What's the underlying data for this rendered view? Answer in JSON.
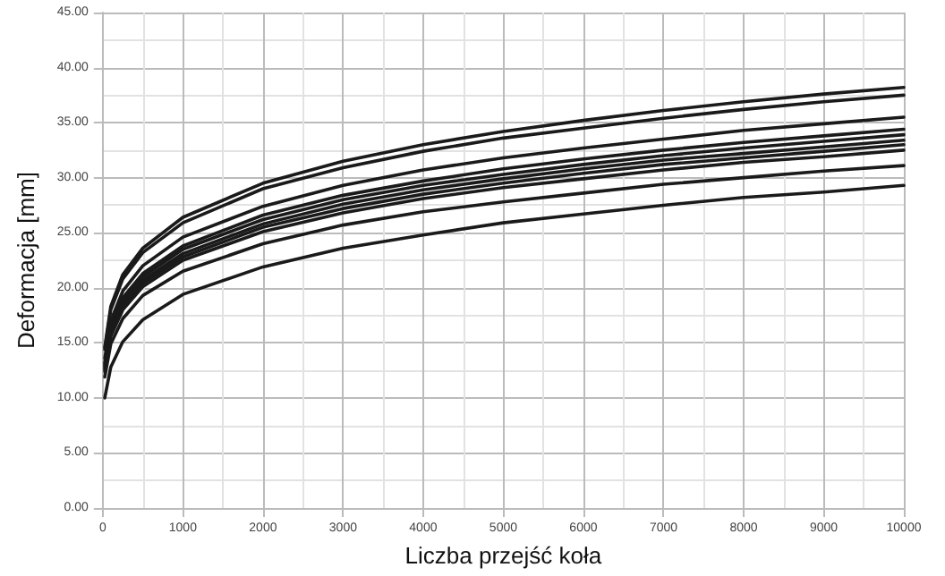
{
  "chart_data": {
    "type": "line",
    "xlabel": "Liczba przejść koła",
    "ylabel": "Deformacja [mm]",
    "x": [
      25,
      100,
      250,
      500,
      1000,
      2000,
      3000,
      4000,
      5000,
      6000,
      7000,
      8000,
      9000,
      10000
    ],
    "series": [
      {
        "color": "#1a1a1a",
        "values": [
          14.6,
          18.3,
          21.2,
          23.6,
          26.4,
          29.5,
          31.5,
          33.0,
          34.2,
          35.2,
          36.1,
          36.9,
          37.6,
          38.2
        ]
      },
      {
        "color": "#1a1a1a",
        "values": [
          14.4,
          18.0,
          20.8,
          23.2,
          25.9,
          29.0,
          30.9,
          32.4,
          33.6,
          34.5,
          35.4,
          36.2,
          36.9,
          37.5
        ]
      },
      {
        "color": "#1a1a1a",
        "values": [
          13.6,
          17.0,
          19.7,
          22.0,
          24.6,
          27.4,
          29.3,
          30.7,
          31.8,
          32.7,
          33.5,
          34.3,
          34.9,
          35.5
        ]
      },
      {
        "color": "#1a1a1a",
        "values": [
          13.2,
          16.5,
          19.1,
          21.3,
          23.8,
          26.6,
          28.4,
          29.7,
          30.8,
          31.7,
          32.5,
          33.2,
          33.8,
          34.4
        ]
      },
      {
        "color": "#1a1a1a",
        "values": [
          13.0,
          16.2,
          18.8,
          21.0,
          23.5,
          26.2,
          28.0,
          29.3,
          30.3,
          31.2,
          32.0,
          32.7,
          33.3,
          33.9
        ]
      },
      {
        "color": "#1a1a1a",
        "values": [
          12.8,
          16.0,
          18.5,
          20.7,
          23.1,
          25.8,
          27.6,
          28.9,
          29.9,
          30.8,
          31.6,
          32.2,
          32.8,
          33.4
        ]
      },
      {
        "color": "#1a1a1a",
        "values": [
          12.6,
          15.8,
          18.3,
          20.4,
          22.8,
          25.5,
          27.2,
          28.5,
          29.5,
          30.4,
          31.2,
          31.8,
          32.4,
          33.0
        ]
      },
      {
        "color": "#1a1a1a",
        "values": [
          12.4,
          15.6,
          18.0,
          20.1,
          22.5,
          25.1,
          26.8,
          28.1,
          29.1,
          29.9,
          30.7,
          31.4,
          31.9,
          32.5
        ]
      },
      {
        "color": "#1a1a1a",
        "values": [
          11.9,
          14.9,
          17.2,
          19.3,
          21.5,
          24.0,
          25.7,
          26.9,
          27.8,
          28.6,
          29.4,
          30.0,
          30.6,
          31.1
        ]
      },
      {
        "color": "#1a1a1a",
        "values": [
          10.0,
          12.8,
          15.1,
          17.1,
          19.4,
          21.9,
          23.6,
          24.8,
          25.9,
          26.7,
          27.5,
          28.2,
          28.7,
          29.3
        ]
      }
    ],
    "xlim": [
      0,
      10000
    ],
    "xticks": [
      0,
      1000,
      2000,
      3000,
      4000,
      5000,
      6000,
      7000,
      8000,
      9000,
      10000
    ],
    "ylim": [
      0,
      45
    ],
    "yticks": [
      {
        "value": 0,
        "label": "0.00"
      },
      {
        "value": 5,
        "label": "5.00"
      },
      {
        "value": 10,
        "label": "10.00"
      },
      {
        "value": 15,
        "label": "15.00"
      },
      {
        "value": 20,
        "label": "20.00"
      },
      {
        "value": 25,
        "label": "25.00"
      },
      {
        "value": 30,
        "label": "30.00"
      },
      {
        "value": 35,
        "label": "35.00"
      },
      {
        "value": 40,
        "label": "40.00"
      },
      {
        "value": 45,
        "label": "45.00"
      }
    ],
    "grid": true,
    "marker": "none",
    "line_style": "solid"
  }
}
